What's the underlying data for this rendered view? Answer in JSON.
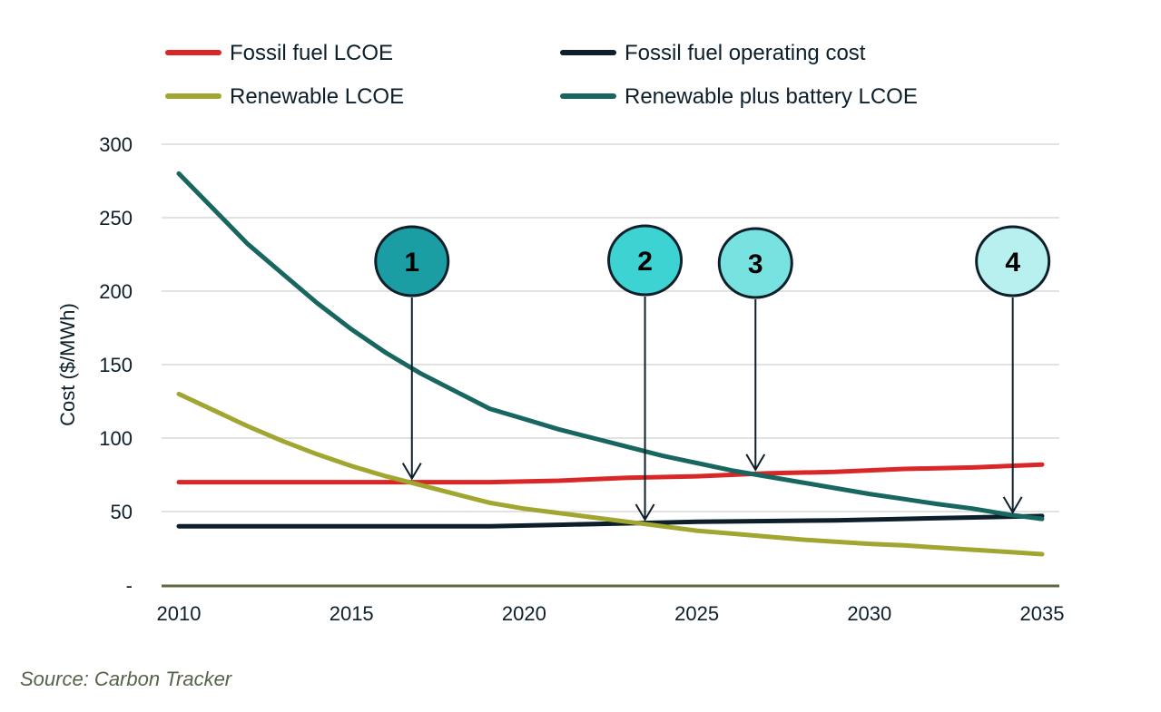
{
  "chart_data": {
    "type": "line",
    "title": "",
    "xlabel": "",
    "ylabel": "Cost ($/MWh)",
    "xlim": [
      2010,
      2035
    ],
    "ylim": [
      0,
      300
    ],
    "grid": true,
    "legend_position": "top",
    "x_ticks": [
      "2010",
      "2015",
      "2020",
      "2025",
      "2030",
      "2035"
    ],
    "y_ticks": [
      {
        "value": 300,
        "label": "300"
      },
      {
        "value": 250,
        "label": "250"
      },
      {
        "value": 200,
        "label": "200"
      },
      {
        "value": 150,
        "label": "150"
      },
      {
        "value": 100,
        "label": "100"
      },
      {
        "value": 50,
        "label": "50"
      },
      {
        "value": 0,
        "label": "-"
      }
    ],
    "series": [
      {
        "name": "Fossil fuel LCOE",
        "color": "#d92626",
        "x": [
          2010,
          2013,
          2016,
          2019,
          2021,
          2023,
          2025,
          2027,
          2029,
          2031,
          2033,
          2035
        ],
        "values": [
          70,
          70,
          70,
          70,
          71,
          73,
          74,
          76,
          77,
          79,
          80,
          82
        ]
      },
      {
        "name": "Fossil fuel operating cost",
        "color": "#0d1f2b",
        "x": [
          2010,
          2013,
          2016,
          2019,
          2021,
          2023,
          2025,
          2027,
          2029,
          2031,
          2033,
          2035
        ],
        "values": [
          40,
          40,
          40,
          40,
          41,
          42,
          43,
          43.5,
          44,
          45,
          46,
          47
        ]
      },
      {
        "name": "Renewable LCOE",
        "color": "#a0a630",
        "x": [
          2010,
          2011,
          2012,
          2013,
          2014,
          2015,
          2016,
          2017,
          2018,
          2019,
          2020,
          2021,
          2022,
          2023,
          2024,
          2025,
          2026,
          2027,
          2028,
          2029,
          2030,
          2031,
          2032,
          2033,
          2034,
          2035
        ],
        "values": [
          130,
          119,
          108,
          98,
          89,
          81,
          74,
          68,
          62,
          56,
          52,
          49,
          46,
          43,
          40,
          37,
          35,
          33,
          31,
          29.5,
          28,
          27,
          25.5,
          24,
          22.5,
          21
        ]
      },
      {
        "name": "Renewable plus battery LCOE",
        "color": "#17665f",
        "x": [
          2010,
          2011,
          2012,
          2013,
          2014,
          2015,
          2016,
          2017,
          2018,
          2019,
          2020,
          2021,
          2022,
          2023,
          2024,
          2025,
          2026,
          2027,
          2028,
          2029,
          2030,
          2031,
          2032,
          2033,
          2034,
          2035
        ],
        "values": [
          280,
          256,
          232,
          212,
          192,
          174,
          158,
          144,
          132,
          120,
          113,
          106,
          100,
          94,
          88,
          83,
          78,
          74,
          70,
          66,
          62,
          58.5,
          55,
          52,
          48,
          45
        ]
      }
    ],
    "annotations": [
      {
        "label": "1",
        "x": 2016.75,
        "y_target": 70,
        "fill": "#1a9ea3"
      },
      {
        "label": "2",
        "x": 2023.5,
        "y_target": 42,
        "fill": "#3dd3d3"
      },
      {
        "label": "3",
        "x": 2026.7,
        "y_target": 76,
        "fill": "#78e2e0"
      },
      {
        "label": "4",
        "x": 2034.15,
        "y_target": 47,
        "fill": "#b8f0ef"
      }
    ]
  },
  "source_text": "Source:  Carbon Tracker"
}
